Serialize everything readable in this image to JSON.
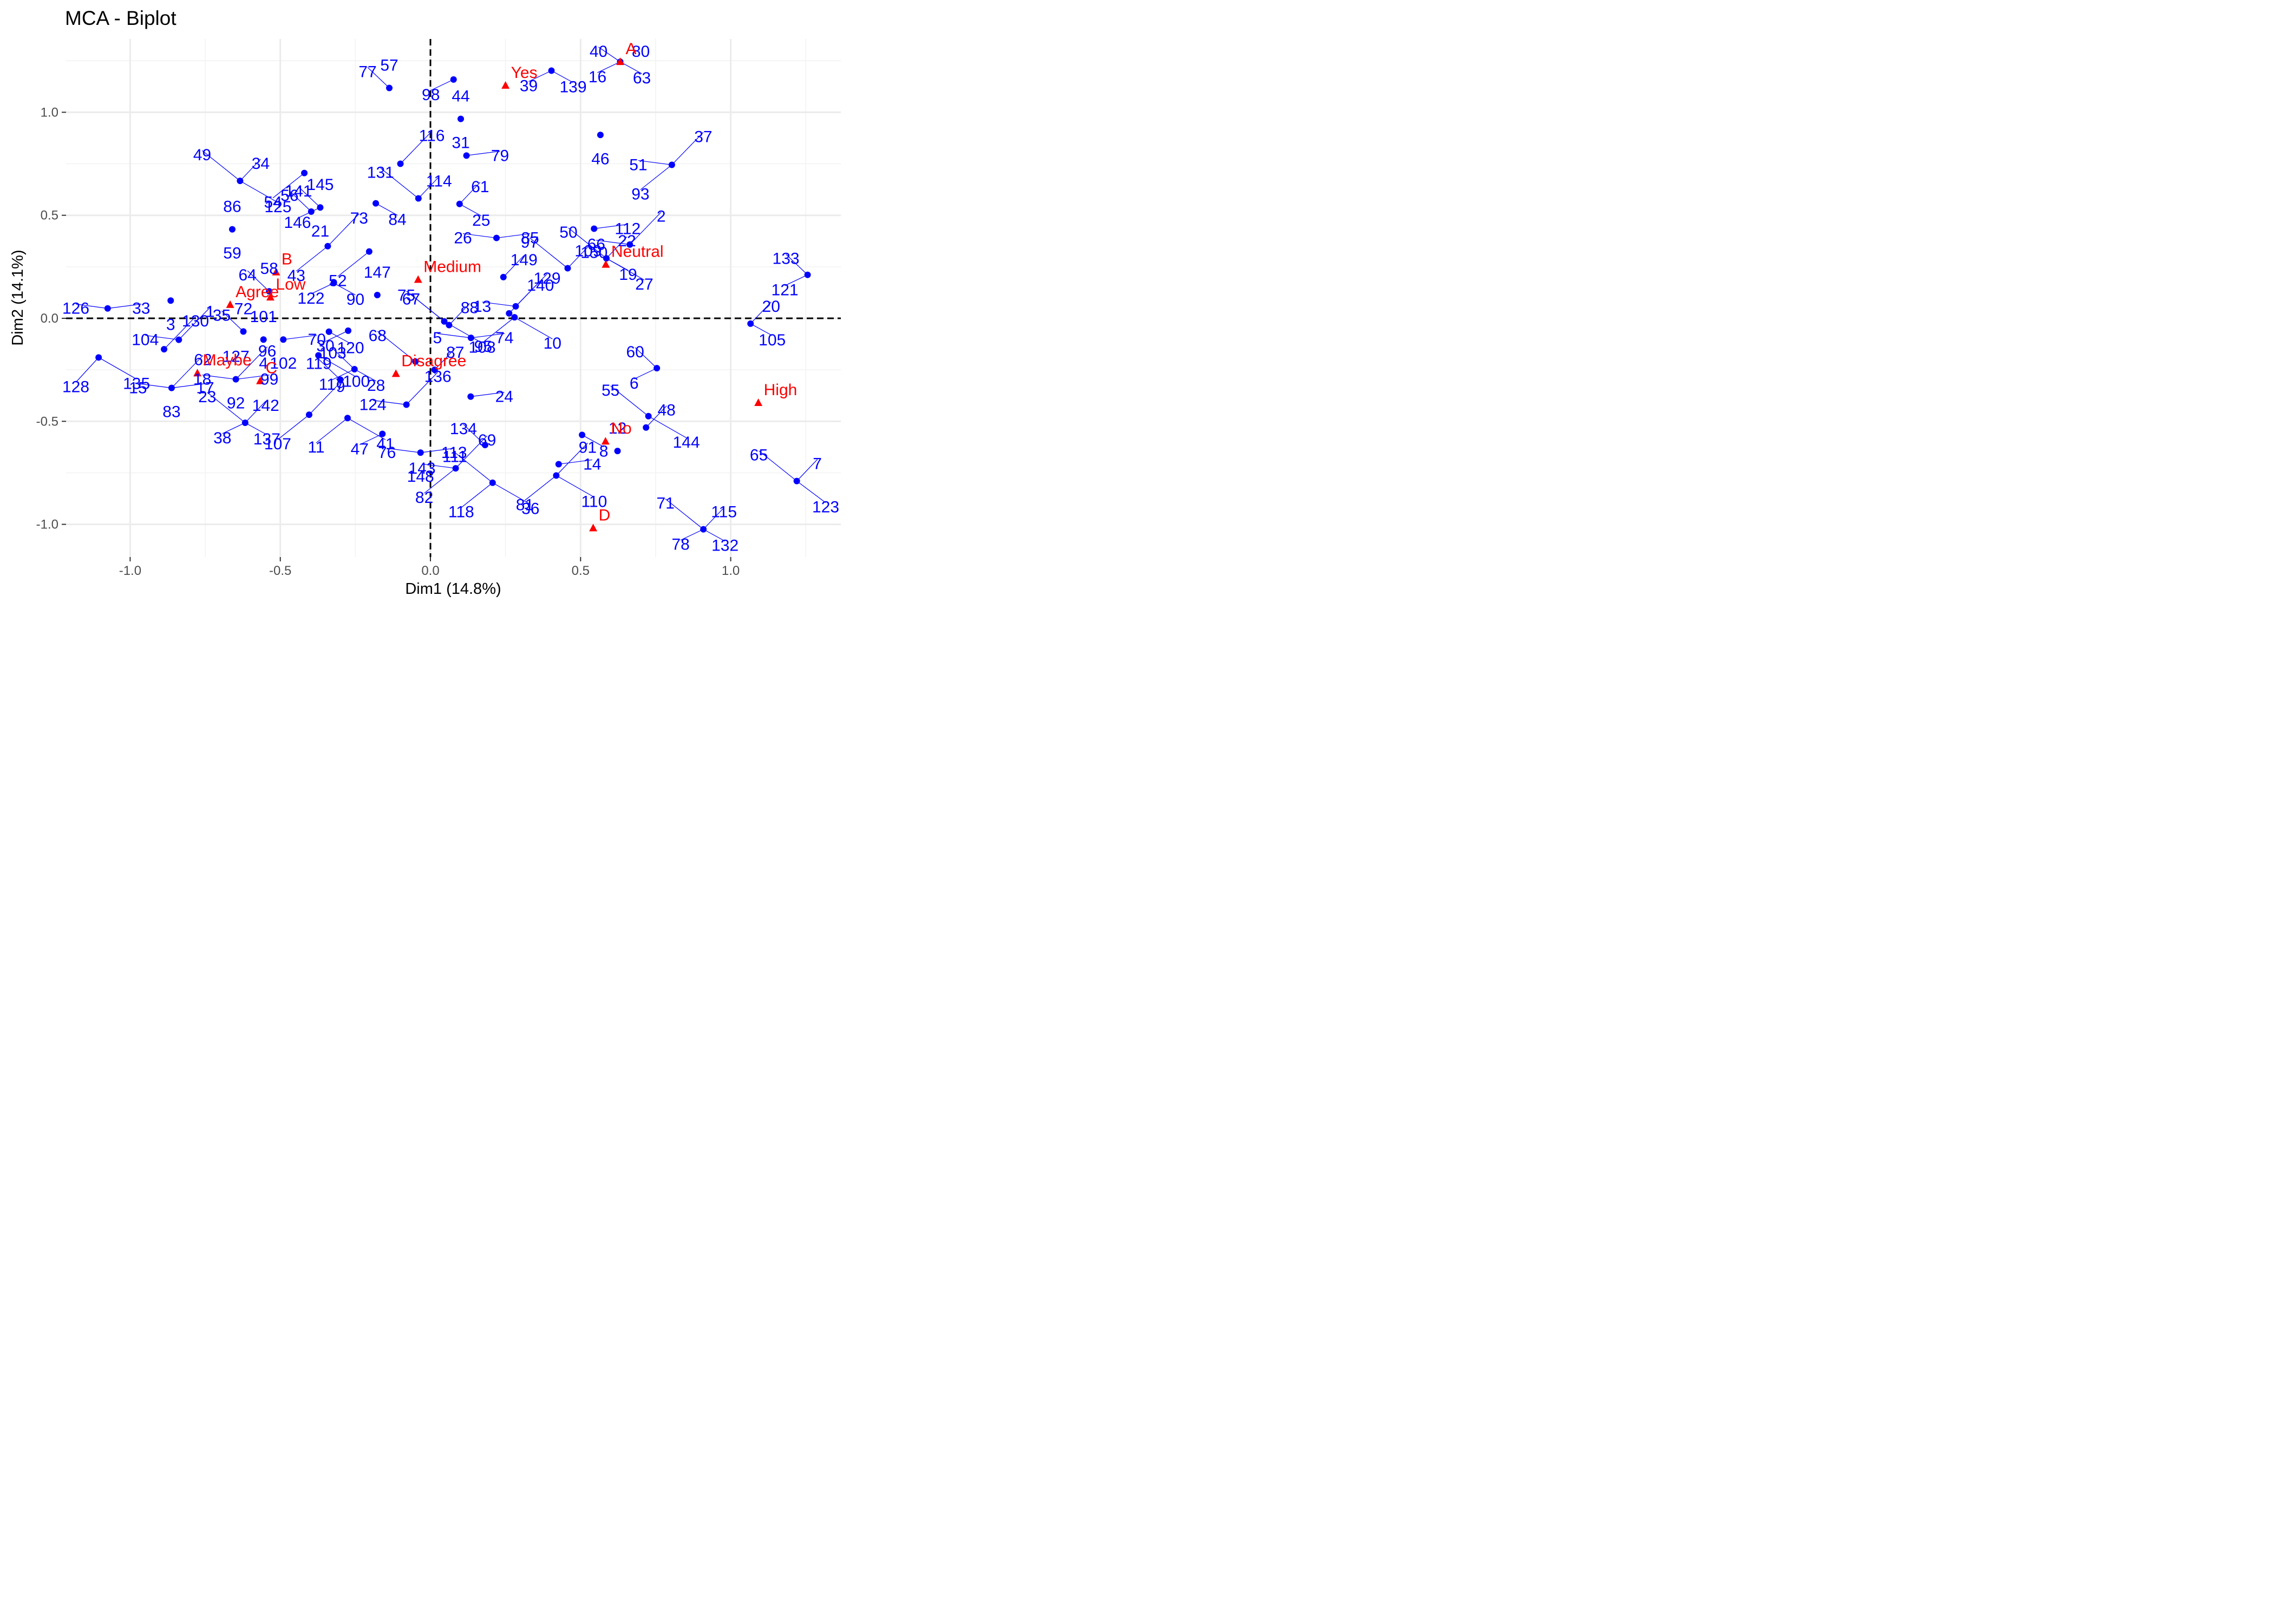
{
  "chart_data": {
    "type": "scatter",
    "title": "MCA - Biplot",
    "xlabel": "Dim1 (14.8%)",
    "ylabel": "Dim2 (14.1%)",
    "xlim": [
      -1.25,
      1.37
    ],
    "ylim": [
      -1.12,
      1.3
    ],
    "xticks": [
      -1.0,
      -0.5,
      0.0,
      0.5,
      1.0
    ],
    "xtick_labels": [
      "-1.0",
      "-0.5",
      "0.0",
      "0.5",
      "1.0"
    ],
    "yticks": [
      -1.0,
      -0.5,
      0.0,
      0.5,
      1.0
    ],
    "ytick_labels": [
      "-1.0",
      "-0.5",
      "0.0",
      "0.5",
      "1.0"
    ],
    "grid": true,
    "reference_lines": {
      "x": 0,
      "y": 0,
      "style": "dashed"
    },
    "colors": {
      "individuals": "#0000ff",
      "categories": "#ff0000",
      "grid": "#ebebeb",
      "tick_labels": "#4d4d4d"
    },
    "individuals": [
      {
        "x": 0.632,
        "y": 1.245,
        "labels": [
          "80",
          "63",
          "16",
          "40"
        ]
      },
      {
        "x": 0.403,
        "y": 1.202,
        "labels": [
          "139",
          "39"
        ]
      },
      {
        "x": 0.077,
        "y": 1.159,
        "labels": [
          "98"
        ]
      },
      {
        "x": -0.137,
        "y": 1.118,
        "labels": [
          "77",
          "57"
        ]
      },
      {
        "x": 0.101,
        "y": 0.968,
        "labels": [
          "44",
          "31"
        ]
      },
      {
        "x": 0.566,
        "y": 0.89,
        "labels": [
          "46"
        ]
      },
      {
        "x": 0.12,
        "y": 0.79,
        "labels": [
          "79"
        ]
      },
      {
        "x": 0.804,
        "y": 0.745,
        "labels": [
          "51",
          "37",
          "93"
        ]
      },
      {
        "x": -0.1,
        "y": 0.75,
        "labels": [
          "116"
        ]
      },
      {
        "x": -0.42,
        "y": 0.705,
        "labels": [
          "54"
        ]
      },
      {
        "x": -0.634,
        "y": 0.667,
        "labels": [
          "125",
          "49",
          "34"
        ]
      },
      {
        "x": -0.04,
        "y": 0.582,
        "labels": [
          "131",
          "114"
        ]
      },
      {
        "x": 0.097,
        "y": 0.555,
        "labels": [
          "61",
          "25"
        ]
      },
      {
        "x": -0.182,
        "y": 0.558,
        "labels": [
          "84"
        ]
      },
      {
        "x": -0.367,
        "y": 0.538,
        "labels": [
          "146",
          "141",
          "145",
          "21"
        ]
      },
      {
        "x": -0.397,
        "y": 0.518,
        "labels": [
          "56"
        ]
      },
      {
        "x": -0.66,
        "y": 0.432,
        "labels": [
          "86",
          "59"
        ]
      },
      {
        "x": 0.545,
        "y": 0.435,
        "labels": [
          "150",
          "112"
        ]
      },
      {
        "x": 0.22,
        "y": 0.39,
        "labels": [
          "85",
          "26"
        ]
      },
      {
        "x": 0.664,
        "y": 0.358,
        "labels": [
          "66",
          "2"
        ]
      },
      {
        "x": -0.342,
        "y": 0.35,
        "labels": [
          "73",
          "43"
        ]
      },
      {
        "x": -0.204,
        "y": 0.324,
        "labels": [
          "52"
        ]
      },
      {
        "x": 0.586,
        "y": 0.291,
        "labels": [
          "27",
          "50",
          "22",
          "19"
        ]
      },
      {
        "x": 0.457,
        "y": 0.243,
        "labels": [
          "97",
          "109"
        ]
      },
      {
        "x": 0.243,
        "y": 0.2,
        "labels": [
          "149"
        ]
      },
      {
        "x": -0.322,
        "y": 0.171,
        "labels": [
          "90",
          "122"
        ]
      },
      {
        "x": 1.256,
        "y": 0.211,
        "labels": [
          "121",
          "133"
        ]
      },
      {
        "x": -0.537,
        "y": 0.131,
        "labels": [
          "64",
          "58"
        ]
      },
      {
        "x": -0.177,
        "y": 0.113,
        "labels": [
          "147"
        ]
      },
      {
        "x": -0.865,
        "y": 0.086,
        "labels": [
          "3"
        ]
      },
      {
        "x": -1.075,
        "y": 0.048,
        "labels": [
          "33",
          "126"
        ]
      },
      {
        "x": 0.284,
        "y": 0.058,
        "labels": [
          "13",
          "129"
        ]
      },
      {
        "x": 0.262,
        "y": 0.024,
        "labels": [
          "140"
        ]
      },
      {
        "x": 0.28,
        "y": 0.005,
        "labels": [
          "95",
          "10"
        ]
      },
      {
        "x": 0.046,
        "y": -0.015,
        "labels": [
          "108",
          "75"
        ]
      },
      {
        "x": 0.062,
        "y": -0.033,
        "labels": [
          "67",
          "88"
        ]
      },
      {
        "x": 1.066,
        "y": -0.026,
        "labels": [
          "20",
          "105"
        ]
      },
      {
        "x": -0.338,
        "y": -0.065,
        "labels": [
          "120"
        ]
      },
      {
        "x": -0.274,
        "y": -0.06,
        "labels": [
          "30"
        ]
      },
      {
        "x": -0.623,
        "y": -0.064,
        "labels": [
          "35",
          "72"
        ]
      },
      {
        "x": -0.556,
        "y": -0.103,
        "labels": [
          "101",
          "4"
        ]
      },
      {
        "x": -0.49,
        "y": -0.103,
        "labels": [
          "102",
          "70"
        ]
      },
      {
        "x": 0.135,
        "y": -0.095,
        "labels": [
          "74",
          "5"
        ]
      },
      {
        "x": -0.838,
        "y": -0.104,
        "labels": [
          "104",
          "1"
        ]
      },
      {
        "x": -0.887,
        "y": -0.15,
        "labels": [
          "130"
        ]
      },
      {
        "x": -1.105,
        "y": -0.19,
        "labels": [
          "128",
          "135"
        ]
      },
      {
        "x": -0.373,
        "y": -0.18,
        "labels": [
          "100"
        ]
      },
      {
        "x": -0.05,
        "y": -0.21,
        "labels": [
          "68"
        ]
      },
      {
        "x": 0.014,
        "y": -0.25,
        "labels": [
          "87"
        ]
      },
      {
        "x": -0.253,
        "y": -0.247,
        "labels": [
          "28",
          "117",
          "103"
        ]
      },
      {
        "x": 0.754,
        "y": -0.242,
        "labels": [
          "6",
          "60"
        ]
      },
      {
        "x": -0.3,
        "y": -0.298,
        "labels": [
          "119"
        ]
      },
      {
        "x": -0.648,
        "y": -0.296,
        "labels": [
          "127",
          "92",
          "99",
          "18",
          "96"
        ]
      },
      {
        "x": -0.862,
        "y": -0.338,
        "labels": [
          "83",
          "17",
          "15",
          "62"
        ]
      },
      {
        "x": 0.134,
        "y": -0.38,
        "labels": [
          "24"
        ]
      },
      {
        "x": -0.08,
        "y": -0.419,
        "labels": [
          "124",
          "136"
        ]
      },
      {
        "x": -0.404,
        "y": -0.468,
        "labels": [
          "9",
          "107"
        ]
      },
      {
        "x": -0.276,
        "y": -0.484,
        "labels": [
          "11",
          "41"
        ]
      },
      {
        "x": 0.726,
        "y": -0.475,
        "labels": [
          "144",
          "55"
        ]
      },
      {
        "x": -0.617,
        "y": -0.507,
        "labels": [
          "23",
          "142",
          "137",
          "38"
        ]
      },
      {
        "x": 0.718,
        "y": -0.53,
        "labels": [
          "48"
        ]
      },
      {
        "x": 0.505,
        "y": -0.566,
        "labels": [
          "8"
        ]
      },
      {
        "x": -0.16,
        "y": -0.561,
        "labels": [
          "47"
        ]
      },
      {
        "x": 0.182,
        "y": -0.615,
        "labels": [
          "134"
        ]
      },
      {
        "x": 0.623,
        "y": -0.644,
        "labels": [
          "12"
        ]
      },
      {
        "x": -0.033,
        "y": -0.652,
        "labels": [
          "148",
          "113",
          "76"
        ]
      },
      {
        "x": 0.427,
        "y": -0.708,
        "labels": [
          "14"
        ]
      },
      {
        "x": 0.084,
        "y": -0.728,
        "labels": [
          "143",
          "69",
          "82"
        ]
      },
      {
        "x": 0.419,
        "y": -0.763,
        "labels": [
          "91",
          "81",
          "110"
        ]
      },
      {
        "x": 0.207,
        "y": -0.798,
        "labels": [
          "118",
          "36",
          "111"
        ]
      },
      {
        "x": 1.22,
        "y": -0.79,
        "labels": [
          "123",
          "65",
          "7"
        ]
      },
      {
        "x": 0.909,
        "y": -1.024,
        "labels": [
          "71",
          "115",
          "132",
          "78"
        ]
      }
    ],
    "categories": [
      {
        "name": "A",
        "x": 0.632,
        "y": 1.245
      },
      {
        "name": "Yes",
        "x": 0.25,
        "y": 1.13
      },
      {
        "name": "Neutral",
        "x": 0.584,
        "y": 0.261
      },
      {
        "name": "B",
        "x": -0.514,
        "y": 0.224
      },
      {
        "name": "Medium",
        "x": -0.041,
        "y": 0.188
      },
      {
        "name": "Low",
        "x": -0.533,
        "y": 0.102
      },
      {
        "name": "Agree",
        "x": -0.667,
        "y": 0.066
      },
      {
        "name": "Maybe",
        "x": -0.776,
        "y": -0.266
      },
      {
        "name": "Disagree",
        "x": -0.115,
        "y": -0.269
      },
      {
        "name": "C",
        "x": -0.567,
        "y": -0.304
      },
      {
        "name": "High",
        "x": 1.092,
        "y": -0.41
      },
      {
        "name": "No",
        "x": 0.583,
        "y": -0.597
      },
      {
        "name": "D",
        "x": 0.542,
        "y": -1.018
      }
    ]
  }
}
